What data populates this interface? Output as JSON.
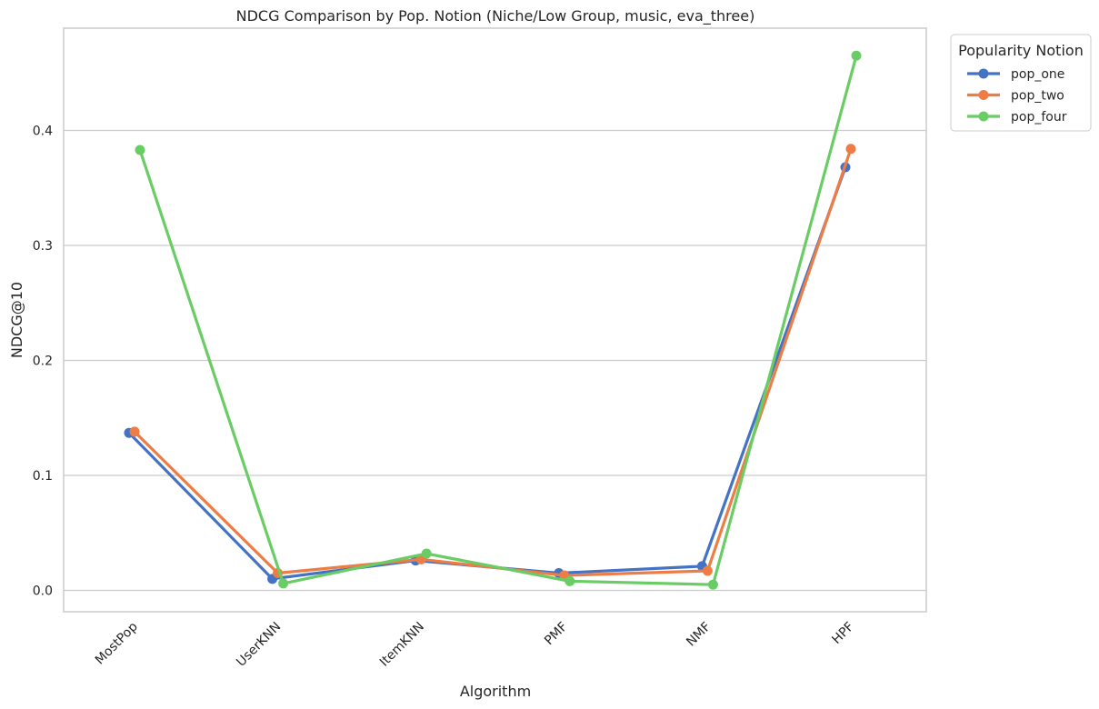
{
  "chart_data": {
    "type": "line",
    "title": "NDCG Comparison by Pop. Notion (Niche/Low Group, music, eva_three)",
    "xlabel": "Algorithm",
    "ylabel": "NDCG@10",
    "categories": [
      "MostPop",
      "UserKNN",
      "ItemKNN",
      "PMF",
      "NMF",
      "HPF"
    ],
    "yticks": [
      "0.0",
      "0.1",
      "0.2",
      "0.3",
      "0.4"
    ],
    "ylim": [
      -0.019,
      0.49
    ],
    "grid": "horizontal",
    "legend": {
      "title": "Popularity Notion",
      "placement": "outside-top-right"
    },
    "series": [
      {
        "name": "pop_one",
        "color": "#4472c4",
        "values": [
          0.137,
          0.01,
          0.026,
          0.015,
          0.021,
          0.368
        ]
      },
      {
        "name": "pop_two",
        "color": "#ed7d45",
        "values": [
          0.138,
          0.015,
          0.027,
          0.013,
          0.017,
          0.384
        ]
      },
      {
        "name": "pop_four",
        "color": "#6acc64",
        "values": [
          0.383,
          0.006,
          0.032,
          0.008,
          0.005,
          0.465
        ]
      }
    ]
  }
}
